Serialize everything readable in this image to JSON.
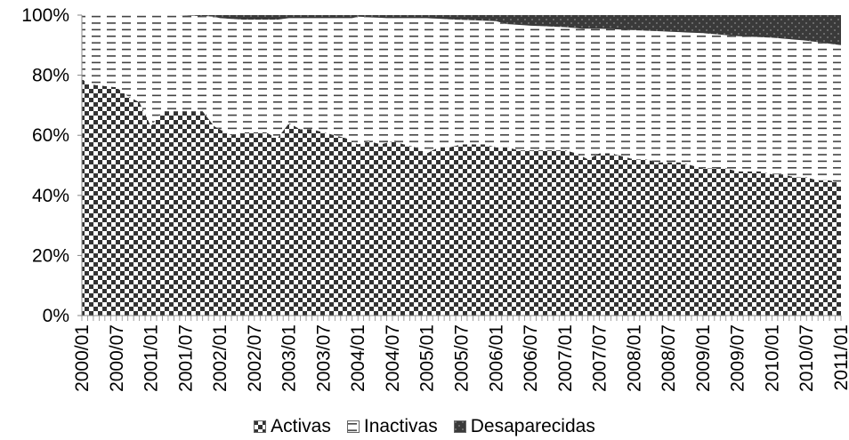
{
  "chart_data": {
    "type": "area",
    "stacked": true,
    "normalized_percent": true,
    "title": "",
    "xlabel": "",
    "ylabel": "",
    "ylim": [
      0,
      100
    ],
    "y_ticks": [
      "0%",
      "20%",
      "40%",
      "60%",
      "80%",
      "100%"
    ],
    "x_tick_labels": [
      "2000/01",
      "2000/07",
      "2001/01",
      "2001/07",
      "2002/01",
      "2002/07",
      "2003/01",
      "2003/07",
      "2004/01",
      "2004/07",
      "2005/01",
      "2005/07",
      "2006/01",
      "2006/07",
      "2007/01",
      "2007/07",
      "2008/01",
      "2008/07",
      "2009/01",
      "2009/07",
      "2010/01",
      "2010/07",
      "2011/01"
    ],
    "legend_position": "bottom",
    "grid": false,
    "x_months": [
      "2000/01",
      "2000/02",
      "2000/03",
      "2000/04",
      "2000/05",
      "2000/06",
      "2000/07",
      "2000/08",
      "2000/09",
      "2000/10",
      "2000/11",
      "2000/12",
      "2001/01",
      "2001/02",
      "2001/03",
      "2001/04",
      "2001/05",
      "2001/06",
      "2001/07",
      "2001/08",
      "2001/09",
      "2001/10",
      "2001/11",
      "2001/12",
      "2002/01",
      "2002/02",
      "2002/03",
      "2002/04",
      "2002/05",
      "2002/06",
      "2002/07",
      "2002/08",
      "2002/09",
      "2002/10",
      "2002/11",
      "2002/12",
      "2003/01",
      "2003/02",
      "2003/03",
      "2003/04",
      "2003/05",
      "2003/06",
      "2003/07",
      "2003/08",
      "2003/09",
      "2003/10",
      "2003/11",
      "2003/12",
      "2004/01",
      "2004/02",
      "2004/03",
      "2004/04",
      "2004/05",
      "2004/06",
      "2004/07",
      "2004/08",
      "2004/09",
      "2004/10",
      "2004/11",
      "2004/12",
      "2005/01",
      "2005/02",
      "2005/03",
      "2005/04",
      "2005/05",
      "2005/06",
      "2005/07",
      "2005/08",
      "2005/09",
      "2005/10",
      "2005/11",
      "2005/12",
      "2006/01",
      "2006/02",
      "2006/03",
      "2006/04",
      "2006/05",
      "2006/06",
      "2006/07",
      "2006/08",
      "2006/09",
      "2006/10",
      "2006/11",
      "2006/12",
      "2007/01",
      "2007/02",
      "2007/03",
      "2007/04",
      "2007/05",
      "2007/06",
      "2007/07",
      "2007/08",
      "2007/09",
      "2007/10",
      "2007/11",
      "2007/12",
      "2008/01",
      "2008/02",
      "2008/03",
      "2008/04",
      "2008/05",
      "2008/06",
      "2008/07",
      "2008/08",
      "2008/09",
      "2008/10",
      "2008/11",
      "2008/12",
      "2009/01",
      "2009/02",
      "2009/03",
      "2009/04",
      "2009/05",
      "2009/06",
      "2009/07",
      "2009/08",
      "2009/09",
      "2009/10",
      "2009/11",
      "2009/12",
      "2010/01",
      "2010/02",
      "2010/03",
      "2010/04",
      "2010/05",
      "2010/06",
      "2010/07",
      "2010/08",
      "2010/09",
      "2010/10",
      "2010/11",
      "2010/12",
      "2011/01"
    ],
    "series_key_values": {
      "Activas": {
        "2000/01": 79,
        "2000/02": 77,
        "2000/07": 76,
        "2000/09": 73,
        "2000/11": 71,
        "2001/01": 63,
        "2001/03": 68,
        "2001/05": 68,
        "2001/07": 68,
        "2001/10": 68,
        "2001/12": 63,
        "2002/01": 62,
        "2002/03": 60,
        "2002/05": 61,
        "2002/07": 61,
        "2002/09": 61,
        "2002/11": 59,
        "2003/01": 64,
        "2003/03": 62,
        "2003/05": 62,
        "2003/07": 61,
        "2003/09": 60,
        "2003/11": 59,
        "2004/01": 57,
        "2004/03": 58,
        "2004/05": 57,
        "2004/07": 58,
        "2004/09": 57,
        "2004/11": 56,
        "2005/01": 54,
        "2005/03": 56,
        "2005/05": 56,
        "2005/07": 57,
        "2005/09": 57,
        "2005/11": 57,
        "2006/01": 56,
        "2006/03": 56,
        "2006/05": 55,
        "2006/07": 55,
        "2006/09": 55,
        "2006/11": 55,
        "2007/01": 55,
        "2007/03": 54,
        "2007/05": 52,
        "2007/07": 54,
        "2007/09": 54,
        "2007/11": 53,
        "2008/01": 52,
        "2008/03": 52,
        "2008/05": 51,
        "2008/07": 51,
        "2008/09": 51,
        "2008/11": 50,
        "2009/01": 49,
        "2009/03": 49,
        "2009/05": 49,
        "2009/07": 48,
        "2009/09": 48,
        "2009/11": 48,
        "2010/01": 47,
        "2010/03": 47,
        "2010/05": 46,
        "2010/07": 46,
        "2010/09": 45,
        "2010/11": 45,
        "2011/01": 44
      },
      "Desaparecidas": {
        "2000/01": 0,
        "2001/06": 0,
        "2001/12": 0.5,
        "2002/01": 1,
        "2002/05": 1.5,
        "2002/07": 1.5,
        "2002/11": 1.5,
        "2003/01": 1,
        "2003/06": 1,
        "2003/12": 1,
        "2004/01": 0.5,
        "2004/06": 1,
        "2005/01": 1,
        "2005/06": 1.5,
        "2006/01": 2,
        "2006/03": 3,
        "2006/07": 3.5,
        "2007/01": 4,
        "2007/04": 4.5,
        "2007/07": 4.5,
        "2008/01": 5,
        "2008/07": 5.5,
        "2009/01": 6,
        "2009/07": 7,
        "2010/01": 7.5,
        "2010/07": 8.5,
        "2011/01": 10
      }
    },
    "series": [
      {
        "name": "Activas",
        "pattern": "checker"
      },
      {
        "name": "Inactivas",
        "pattern": "dashes"
      },
      {
        "name": "Desaparecidas",
        "pattern": "dark-dots"
      }
    ],
    "colors": {
      "activas_dark": "#333333",
      "activas_light": "#ffffff",
      "inactivas_dash": "#404040",
      "desaparecidas_dark": "#3a3a3a",
      "desaparecidas_dot": "#8a8a8a",
      "axis": "#888888",
      "text": "#000000"
    }
  },
  "legend": {
    "items": [
      {
        "label": "Activas"
      },
      {
        "label": "Inactivas"
      },
      {
        "label": "Desaparecidas"
      }
    ]
  }
}
